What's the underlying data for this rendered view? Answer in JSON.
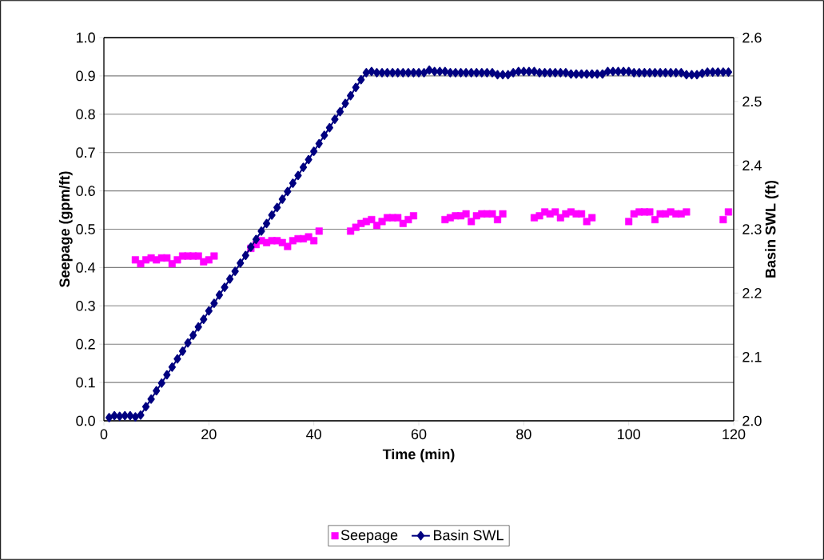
{
  "chart_data": {
    "type": "line",
    "xlabel": "Time (min)",
    "ylabel": "Seepage (gpm/ft)",
    "y2label": "Basin SWL (ft)",
    "xlim": [
      0,
      120
    ],
    "xticks": [
      0,
      20,
      40,
      60,
      80,
      100,
      120
    ],
    "ylim": [
      0,
      1
    ],
    "yticks": [
      {
        "value": 0,
        "label": "0.0"
      },
      {
        "value": 0.1,
        "label": "0.1"
      },
      {
        "value": 0.2,
        "label": "0.2"
      },
      {
        "value": 0.3,
        "label": "0.3"
      },
      {
        "value": 0.4,
        "label": "0.4"
      },
      {
        "value": 0.5,
        "label": "0.5"
      },
      {
        "value": 0.6,
        "label": "0.6"
      },
      {
        "value": 0.7,
        "label": "0.7"
      },
      {
        "value": 0.8,
        "label": "0.8"
      },
      {
        "value": 0.9,
        "label": "0.9"
      },
      {
        "value": 1,
        "label": "1.0"
      }
    ],
    "y2lim": [
      2.0,
      2.6
    ],
    "y2ticks": [
      {
        "value": 2.0,
        "label": "2.0"
      },
      {
        "value": 2.1,
        "label": "2.1"
      },
      {
        "value": 2.2,
        "label": "2.2"
      },
      {
        "value": 2.3,
        "label": "2.3"
      },
      {
        "value": 2.4,
        "label": "2.4"
      },
      {
        "value": 2.5,
        "label": "2.5"
      },
      {
        "value": 2.6,
        "label": "2.6"
      }
    ],
    "grid": "y",
    "legend": "bottom",
    "series": [
      {
        "name": "Seepage",
        "type": "scatter",
        "marker": "square",
        "color": "#ff00ff",
        "x": [
          6,
          7,
          8,
          9,
          10,
          11,
          12,
          13,
          14,
          15,
          16,
          17,
          18,
          19,
          20,
          21,
          28,
          29,
          30,
          31,
          32,
          33,
          34,
          35,
          36,
          37,
          38,
          39,
          40,
          41,
          47,
          48,
          49,
          50,
          51,
          52,
          53,
          54,
          55,
          56,
          57,
          58,
          59,
          65,
          66,
          67,
          68,
          69,
          70,
          71,
          72,
          73,
          74,
          75,
          76,
          82,
          83,
          84,
          85,
          86,
          87,
          88,
          89,
          90,
          91,
          92,
          93,
          100,
          101,
          102,
          103,
          104,
          105,
          106,
          107,
          108,
          109,
          110,
          111,
          118,
          119
        ],
        "values": [
          0.42,
          0.41,
          0.42,
          0.425,
          0.42,
          0.425,
          0.425,
          0.41,
          0.42,
          0.43,
          0.43,
          0.43,
          0.43,
          0.415,
          0.42,
          0.43,
          0.45,
          0.46,
          0.47,
          0.465,
          0.47,
          0.47,
          0.465,
          0.455,
          0.47,
          0.475,
          0.475,
          0.48,
          0.47,
          0.495,
          0.495,
          0.505,
          0.515,
          0.52,
          0.525,
          0.51,
          0.52,
          0.53,
          0.53,
          0.53,
          0.515,
          0.525,
          0.535,
          0.525,
          0.53,
          0.535,
          0.535,
          0.54,
          0.52,
          0.535,
          0.54,
          0.54,
          0.54,
          0.525,
          0.54,
          0.53,
          0.535,
          0.545,
          0.54,
          0.545,
          0.53,
          0.54,
          0.545,
          0.54,
          0.54,
          0.52,
          0.53,
          0.52,
          0.54,
          0.545,
          0.545,
          0.545,
          0.525,
          0.54,
          0.54,
          0.545,
          0.54,
          0.54,
          0.545,
          0.525,
          0.545
        ]
      },
      {
        "name": "Basin SWL",
        "axis": "y2",
        "marker": "diamond",
        "line_style": "solid",
        "color": "#000080",
        "x": [
          1,
          2,
          3,
          4,
          5,
          6,
          7,
          8,
          9,
          10,
          11,
          12,
          13,
          14,
          15,
          16,
          17,
          18,
          19,
          20,
          21,
          22,
          23,
          24,
          25,
          26,
          27,
          28,
          29,
          30,
          31,
          32,
          33,
          34,
          35,
          36,
          37,
          38,
          39,
          40,
          41,
          42,
          43,
          44,
          45,
          46,
          47,
          48,
          49,
          50,
          51,
          52,
          53,
          54,
          55,
          56,
          57,
          58,
          59,
          60,
          61,
          62,
          63,
          64,
          65,
          66,
          67,
          68,
          69,
          70,
          71,
          72,
          73,
          74,
          75,
          76,
          77,
          78,
          79,
          80,
          81,
          82,
          83,
          84,
          85,
          86,
          87,
          88,
          89,
          90,
          91,
          92,
          93,
          94,
          95,
          96,
          97,
          98,
          99,
          100,
          101,
          102,
          103,
          104,
          105,
          106,
          107,
          108,
          109,
          110,
          111,
          112,
          113,
          114,
          115,
          116,
          117,
          118,
          119
        ],
        "values": [
          2.005,
          2.008,
          2.007,
          2.008,
          2.008,
          2.006,
          2.009,
          2.022,
          2.034,
          2.047,
          2.059,
          2.072,
          2.084,
          2.097,
          2.109,
          2.122,
          2.134,
          2.147,
          2.159,
          2.172,
          2.184,
          2.197,
          2.209,
          2.222,
          2.234,
          2.247,
          2.259,
          2.272,
          2.284,
          2.297,
          2.309,
          2.322,
          2.334,
          2.347,
          2.359,
          2.372,
          2.384,
          2.397,
          2.409,
          2.422,
          2.434,
          2.447,
          2.459,
          2.472,
          2.484,
          2.497,
          2.509,
          2.522,
          2.534,
          2.545,
          2.547,
          2.545,
          2.545,
          2.545,
          2.545,
          2.545,
          2.545,
          2.545,
          2.545,
          2.545,
          2.545,
          2.549,
          2.547,
          2.547,
          2.547,
          2.545,
          2.545,
          2.545,
          2.545,
          2.545,
          2.545,
          2.545,
          2.545,
          2.545,
          2.542,
          2.542,
          2.542,
          2.545,
          2.547,
          2.547,
          2.547,
          2.547,
          2.545,
          2.545,
          2.545,
          2.545,
          2.545,
          2.545,
          2.543,
          2.543,
          2.543,
          2.543,
          2.543,
          2.543,
          2.543,
          2.547,
          2.547,
          2.547,
          2.547,
          2.547,
          2.545,
          2.545,
          2.545,
          2.545,
          2.545,
          2.545,
          2.545,
          2.545,
          2.545,
          2.545,
          2.542,
          2.542,
          2.542,
          2.544,
          2.546,
          2.546,
          2.546,
          2.546,
          2.546
        ]
      }
    ]
  }
}
